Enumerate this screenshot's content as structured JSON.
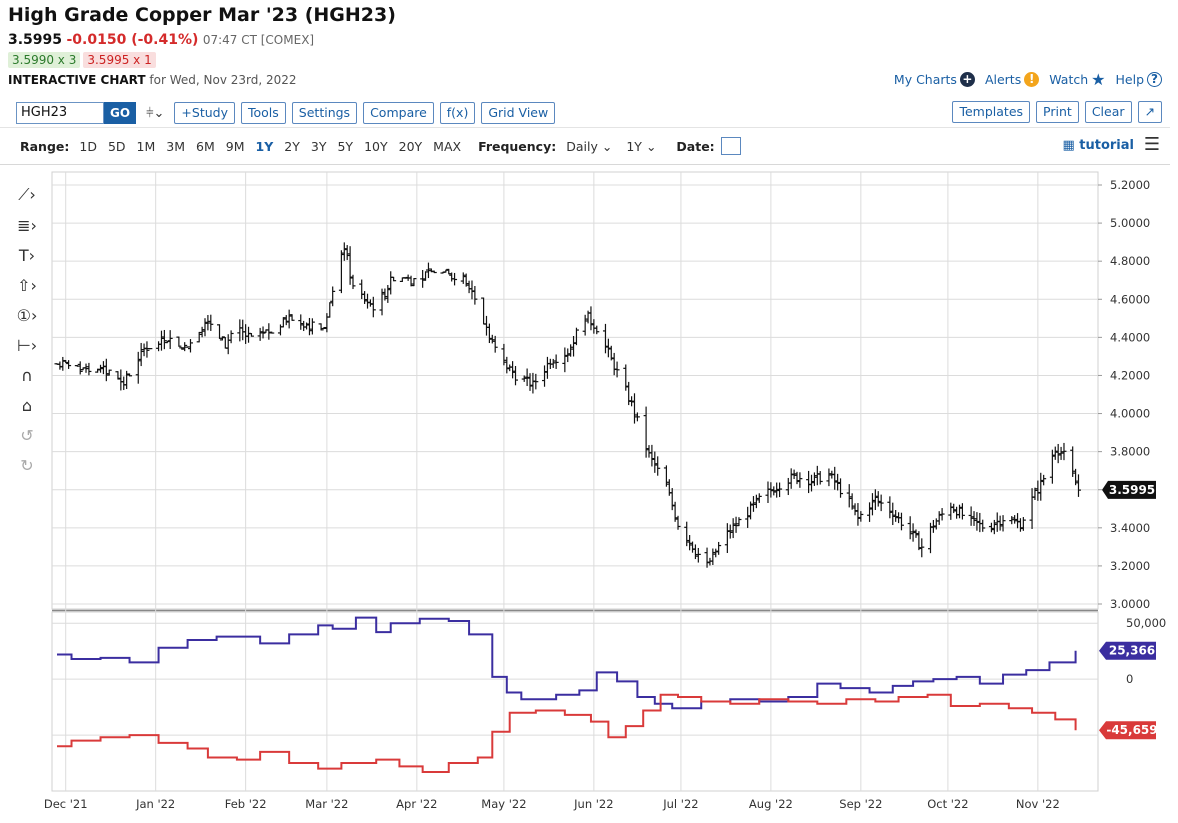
{
  "header": {
    "title": "High Grade Copper Mar '23 (HGH23)",
    "last": "3.5995",
    "change": "-0.0150 (-0.41%)",
    "time": "07:47 CT [COMEX]",
    "bid": "3.5990 x 3",
    "ask": "3.5995 x 1",
    "chart_label": "INTERACTIVE CHART",
    "chart_date": "for Wed, Nov 23rd, 2022"
  },
  "top_links": {
    "my_charts": "My Charts",
    "alerts": "Alerts",
    "watch": "Watch",
    "help": "Help"
  },
  "toolbar": {
    "symbol": "HGH23",
    "go": "GO",
    "study": "+Study",
    "tools": "Tools",
    "settings": "Settings",
    "compare": "Compare",
    "fx": "f(x)",
    "grid_view": "Grid View",
    "templates": "Templates",
    "print": "Print",
    "clear": "Clear",
    "expand": "↗"
  },
  "range_bar": {
    "range_label": "Range:",
    "ranges": [
      "1D",
      "5D",
      "1M",
      "3M",
      "6M",
      "9M",
      "1Y",
      "2Y",
      "3Y",
      "5Y",
      "10Y",
      "20Y",
      "MAX"
    ],
    "active_range": "1Y",
    "frequency_label": "Frequency:",
    "frequency_value": "Daily",
    "period_value": "1Y",
    "date_label": "Date:",
    "tutorial": "tutorial"
  },
  "chart_data": [
    {
      "type": "ohlc",
      "title": "",
      "ylim": [
        3.0,
        5.2
      ],
      "yticks": [
        "5.2000",
        "5.0000",
        "4.8000",
        "4.6000",
        "4.4000",
        "4.2000",
        "4.0000",
        "3.8000",
        "3.6000",
        "3.4000",
        "3.2000",
        "3.0000"
      ],
      "last_label": "3.5995",
      "x_labels": [
        "Dec '21",
        "Jan '22",
        "Feb '22",
        "Mar '22",
        "Apr '22",
        "May '22",
        "Jun '22",
        "Jul '22",
        "Aug '22",
        "Sep '22",
        "Oct '22",
        "Nov '22"
      ],
      "close_anchors": [
        {
          "d": 0,
          "v": 4.26
        },
        {
          "d": 10,
          "v": 4.24
        },
        {
          "d": 18,
          "v": 4.22
        },
        {
          "d": 23,
          "v": 4.16
        },
        {
          "d": 30,
          "v": 4.34
        },
        {
          "d": 38,
          "v": 4.39
        },
        {
          "d": 45,
          "v": 4.35
        },
        {
          "d": 52,
          "v": 4.5
        },
        {
          "d": 58,
          "v": 4.36
        },
        {
          "d": 62,
          "v": 4.44
        },
        {
          "d": 68,
          "v": 4.38
        },
        {
          "d": 74,
          "v": 4.44
        },
        {
          "d": 80,
          "v": 4.5
        },
        {
          "d": 86,
          "v": 4.47
        },
        {
          "d": 92,
          "v": 4.44
        },
        {
          "d": 96,
          "v": 4.7
        },
        {
          "d": 99,
          "v": 4.88
        },
        {
          "d": 102,
          "v": 4.66
        },
        {
          "d": 106,
          "v": 4.6
        },
        {
          "d": 110,
          "v": 4.55
        },
        {
          "d": 116,
          "v": 4.72
        },
        {
          "d": 124,
          "v": 4.7
        },
        {
          "d": 130,
          "v": 4.75
        },
        {
          "d": 136,
          "v": 4.72
        },
        {
          "d": 141,
          "v": 4.7
        },
        {
          "d": 146,
          "v": 4.52
        },
        {
          "d": 152,
          "v": 4.3
        },
        {
          "d": 158,
          "v": 4.2
        },
        {
          "d": 164,
          "v": 4.15
        },
        {
          "d": 170,
          "v": 4.28
        },
        {
          "d": 176,
          "v": 4.32
        },
        {
          "d": 182,
          "v": 4.52
        },
        {
          "d": 186,
          "v": 4.45
        },
        {
          "d": 192,
          "v": 4.25
        },
        {
          "d": 198,
          "v": 4.05
        },
        {
          "d": 204,
          "v": 3.78
        },
        {
          "d": 210,
          "v": 3.62
        },
        {
          "d": 214,
          "v": 3.42
        },
        {
          "d": 220,
          "v": 3.28
        },
        {
          "d": 224,
          "v": 3.2
        },
        {
          "d": 230,
          "v": 3.35
        },
        {
          "d": 236,
          "v": 3.45
        },
        {
          "d": 242,
          "v": 3.55
        },
        {
          "d": 248,
          "v": 3.62
        },
        {
          "d": 254,
          "v": 3.67
        },
        {
          "d": 260,
          "v": 3.65
        },
        {
          "d": 266,
          "v": 3.68
        },
        {
          "d": 272,
          "v": 3.56
        },
        {
          "d": 276,
          "v": 3.45
        },
        {
          "d": 282,
          "v": 3.55
        },
        {
          "d": 288,
          "v": 3.48
        },
        {
          "d": 294,
          "v": 3.38
        },
        {
          "d": 298,
          "v": 3.3
        },
        {
          "d": 302,
          "v": 3.42
        },
        {
          "d": 308,
          "v": 3.52
        },
        {
          "d": 314,
          "v": 3.44
        },
        {
          "d": 320,
          "v": 3.4
        },
        {
          "d": 326,
          "v": 3.45
        },
        {
          "d": 332,
          "v": 3.42
        },
        {
          "d": 336,
          "v": 3.55
        },
        {
          "d": 340,
          "v": 3.66
        },
        {
          "d": 344,
          "v": 3.82
        },
        {
          "d": 347,
          "v": 3.78
        },
        {
          "d": 352,
          "v": 3.6
        }
      ]
    },
    {
      "type": "line",
      "subtype": "step",
      "ylim": [
        -100000,
        60000
      ],
      "yticks": [
        "50,000",
        "0"
      ],
      "series": [
        {
          "color": "#3b2ea0",
          "last_label": "25,366",
          "steps": [
            {
              "d": 0,
              "v": 22000
            },
            {
              "d": 5,
              "v": 18000
            },
            {
              "d": 15,
              "v": 19000
            },
            {
              "d": 25,
              "v": 15000
            },
            {
              "d": 35,
              "v": 28000
            },
            {
              "d": 45,
              "v": 35000
            },
            {
              "d": 55,
              "v": 38000
            },
            {
              "d": 70,
              "v": 32000
            },
            {
              "d": 80,
              "v": 40000
            },
            {
              "d": 90,
              "v": 48000
            },
            {
              "d": 95,
              "v": 45000
            },
            {
              "d": 103,
              "v": 55000
            },
            {
              "d": 110,
              "v": 42000
            },
            {
              "d": 115,
              "v": 50000
            },
            {
              "d": 125,
              "v": 54000
            },
            {
              "d": 135,
              "v": 52000
            },
            {
              "d": 142,
              "v": 40000
            },
            {
              "d": 150,
              "v": 2000
            },
            {
              "d": 155,
              "v": -12000
            },
            {
              "d": 160,
              "v": -18000
            },
            {
              "d": 172,
              "v": -14000
            },
            {
              "d": 180,
              "v": -10000
            },
            {
              "d": 186,
              "v": 6000
            },
            {
              "d": 193,
              "v": -2000
            },
            {
              "d": 200,
              "v": -16000
            },
            {
              "d": 206,
              "v": -22000
            },
            {
              "d": 212,
              "v": -26000
            },
            {
              "d": 222,
              "v": -20000
            },
            {
              "d": 232,
              "v": -18000
            },
            {
              "d": 242,
              "v": -20000
            },
            {
              "d": 252,
              "v": -16000
            },
            {
              "d": 262,
              "v": -4000
            },
            {
              "d": 270,
              "v": -8000
            },
            {
              "d": 280,
              "v": -12000
            },
            {
              "d": 288,
              "v": -6000
            },
            {
              "d": 295,
              "v": -2000
            },
            {
              "d": 302,
              "v": 0
            },
            {
              "d": 310,
              "v": 2000
            },
            {
              "d": 318,
              "v": -4000
            },
            {
              "d": 326,
              "v": 4000
            },
            {
              "d": 334,
              "v": 8000
            },
            {
              "d": 342,
              "v": 15000
            },
            {
              "d": 351,
              "v": 25366
            }
          ]
        },
        {
          "color": "#d93a3a",
          "last_label": "-45,659",
          "steps": [
            {
              "d": 0,
              "v": -60000
            },
            {
              "d": 5,
              "v": -55000
            },
            {
              "d": 15,
              "v": -52000
            },
            {
              "d": 25,
              "v": -50000
            },
            {
              "d": 35,
              "v": -57000
            },
            {
              "d": 45,
              "v": -62000
            },
            {
              "d": 52,
              "v": -70000
            },
            {
              "d": 62,
              "v": -72000
            },
            {
              "d": 70,
              "v": -65000
            },
            {
              "d": 80,
              "v": -75000
            },
            {
              "d": 90,
              "v": -80000
            },
            {
              "d": 98,
              "v": -75000
            },
            {
              "d": 110,
              "v": -72000
            },
            {
              "d": 118,
              "v": -78000
            },
            {
              "d": 126,
              "v": -83000
            },
            {
              "d": 135,
              "v": -75000
            },
            {
              "d": 145,
              "v": -70000
            },
            {
              "d": 150,
              "v": -47000
            },
            {
              "d": 156,
              "v": -30000
            },
            {
              "d": 165,
              "v": -28000
            },
            {
              "d": 175,
              "v": -32000
            },
            {
              "d": 184,
              "v": -38000
            },
            {
              "d": 190,
              "v": -52000
            },
            {
              "d": 196,
              "v": -42000
            },
            {
              "d": 202,
              "v": -28000
            },
            {
              "d": 208,
              "v": -14000
            },
            {
              "d": 214,
              "v": -16000
            },
            {
              "d": 222,
              "v": -20000
            },
            {
              "d": 232,
              "v": -22000
            },
            {
              "d": 242,
              "v": -18000
            },
            {
              "d": 252,
              "v": -20000
            },
            {
              "d": 262,
              "v": -22000
            },
            {
              "d": 272,
              "v": -18000
            },
            {
              "d": 282,
              "v": -20000
            },
            {
              "d": 290,
              "v": -16000
            },
            {
              "d": 300,
              "v": -14000
            },
            {
              "d": 308,
              "v": -24000
            },
            {
              "d": 318,
              "v": -22000
            },
            {
              "d": 328,
              "v": -26000
            },
            {
              "d": 336,
              "v": -30000
            },
            {
              "d": 344,
              "v": -36000
            },
            {
              "d": 351,
              "v": -45659
            }
          ]
        }
      ]
    }
  ]
}
